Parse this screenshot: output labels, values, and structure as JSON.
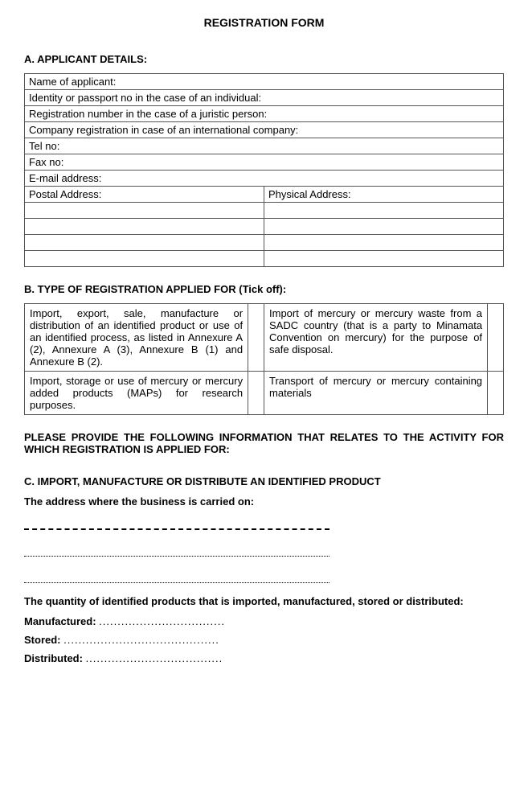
{
  "title": "REGISTRATION FORM",
  "sectionA": {
    "heading": "A. APPLICANT DETAILS:",
    "rows": [
      "Name of applicant:",
      "Identity or passport no in the case of an individual:",
      "Registration number in the case of a juristic person:",
      "Company registration in case of an international company:",
      "Tel no:",
      "Fax no:",
      "E-mail address:"
    ],
    "postal": "Postal Address:",
    "physical": "Physical Address:"
  },
  "sectionB": {
    "heading": "B. TYPE OF REGISTRATION APPLIED FOR (Tick off):",
    "r1c1": "Import, export, sale, manufacture or distribution of an identified product or use of an identified process, as listed in Annexure A (2), Annexure A (3), Annexure B (1) and Annexure B (2).",
    "r1c2": "Import of mercury or mercury waste from a SADC country (that is a party to Minamata Convention on mercury) for the purpose of safe disposal.",
    "r2c1": "Import, storage or use of mercury or mercury added products (MAPs) for research purposes.",
    "r2c2": "Transport of mercury or mercury containing materials"
  },
  "instruction": "PLEASE PROVIDE THE FOLLOWING INFORMATION THAT RELATES TO THE ACTIVITY FOR WHICH REGISTRATION IS APPLIED FOR:",
  "sectionC": {
    "heading": "C. IMPORT, MANUFACTURE OR DISTRIBUTE AN IDENTIFIED PRODUCT",
    "addressLabel": "The address where the business is carried on:",
    "quantityLabel": "The quantity of identified products that is imported, manufactured, stored or distributed:",
    "manufactured": "Manufactured: ",
    "stored": "Stored: ",
    "distributed": "Distributed: ",
    "dotsShort": "..................................",
    "dotsMed": "..........................................",
    "dotsMed2": "....................................."
  }
}
